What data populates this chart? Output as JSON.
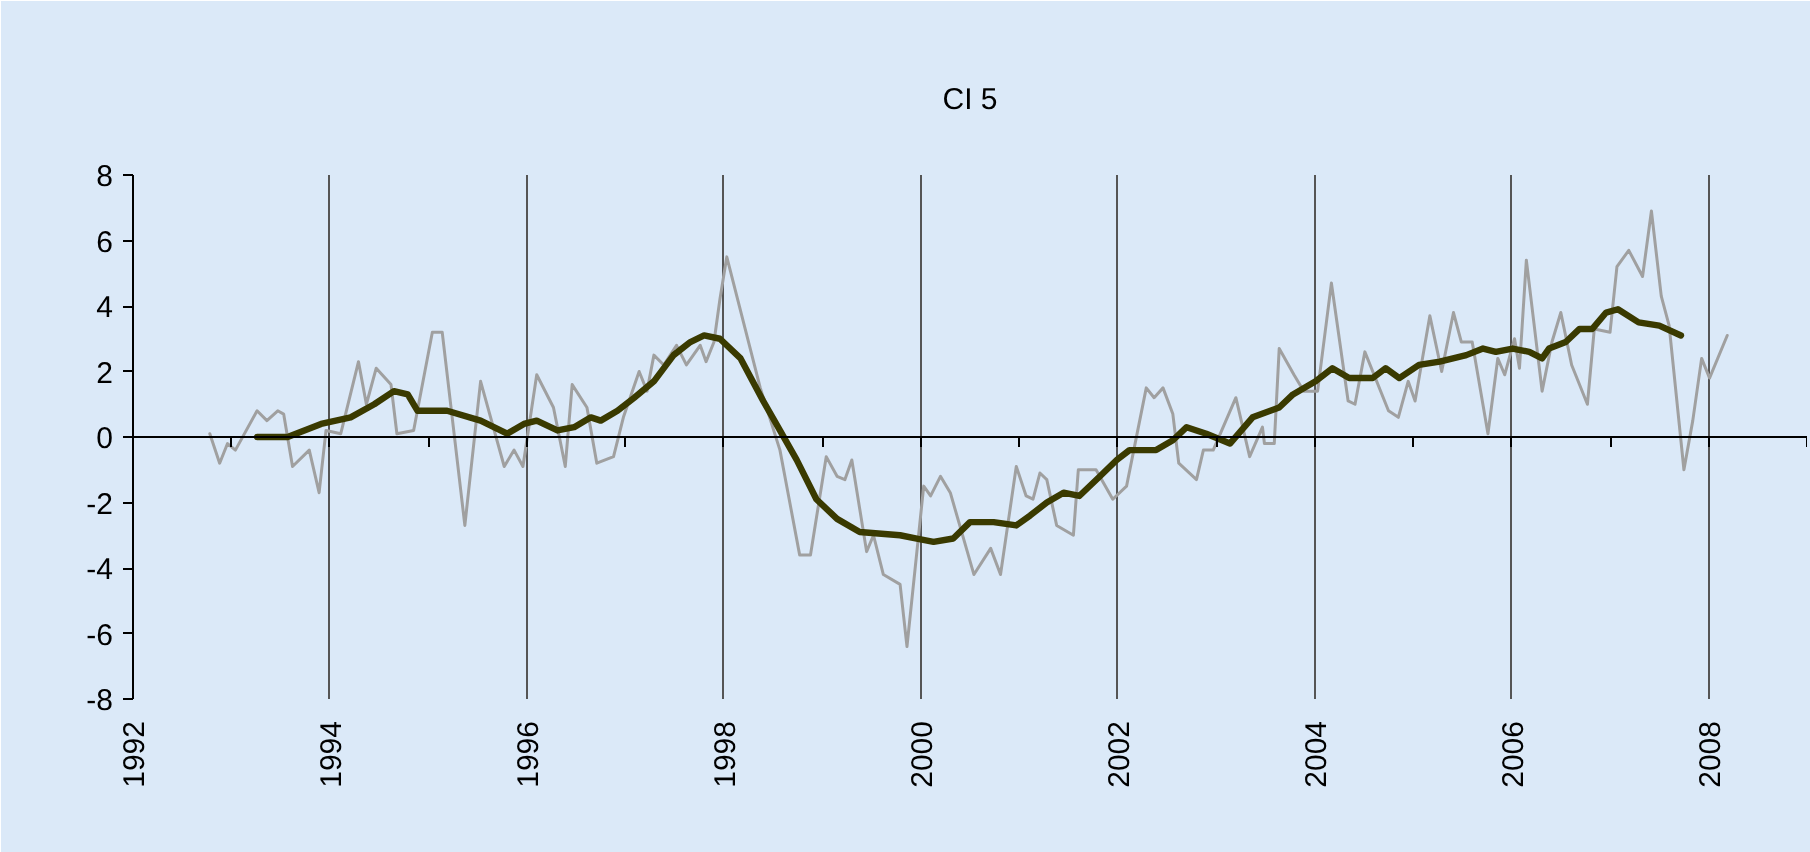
{
  "chart_data": {
    "type": "line",
    "title": "CI 5",
    "xlim": [
      1992,
      2009
    ],
    "xticks": [
      1992,
      {
        "value": 1993,
        "label": null
      },
      1994,
      {
        "value": 1995,
        "label": null
      },
      1996,
      {
        "value": 1997,
        "label": null
      },
      1998,
      {
        "value": 1999,
        "label": null
      },
      2000,
      {
        "value": 2001,
        "label": null
      },
      2002,
      {
        "value": 2003,
        "label": null
      },
      2004,
      {
        "value": 2005,
        "label": null
      },
      2006,
      {
        "value": 2007,
        "label": null
      },
      2008,
      {
        "value": 2009,
        "label": null
      }
    ],
    "ylim": [
      -8,
      8
    ],
    "yticks": [
      -8,
      -6,
      -4,
      -2,
      0,
      2,
      4,
      6,
      8
    ],
    "grid": "x",
    "marker": "none",
    "line_style": "solid",
    "series": [
      {
        "color": "#a0a0a0",
        "x": [
          1992.78,
          1992.88,
          1992.96,
          1993.04,
          1993.26,
          1993.36,
          1993.47,
          1993.53,
          1993.62,
          1993.79,
          1993.89,
          1993.96,
          1994.11,
          1994.29,
          1994.37,
          1994.47,
          1994.62,
          1994.68,
          1994.85,
          1995.04,
          1995.14,
          1995.37,
          1995.53,
          1995.77,
          1995.87,
          1995.96,
          1996.1,
          1996.27,
          1996.39,
          1996.46,
          1996.61,
          1996.71,
          1996.88,
          1996.98,
          1997.14,
          1997.22,
          1997.29,
          1997.39,
          1997.52,
          1997.62,
          1997.76,
          1997.82,
          1997.9,
          1997.96,
          1998.03,
          1998.37,
          1998.57,
          1998.77,
          1998.88,
          1999.04,
          1999.15,
          1999.23,
          1999.3,
          1999.45,
          1999.52,
          1999.62,
          1999.79,
          1999.86,
          2000.03,
          2000.1,
          2000.2,
          2000.3,
          2000.54,
          2000.71,
          2000.81,
          2000.97,
          2001.07,
          2001.14,
          2001.21,
          2001.28,
          2001.38,
          2001.55,
          2001.6,
          2001.78,
          2001.95,
          2002.09,
          2002.29,
          2002.37,
          2002.46,
          2002.56,
          2002.62,
          2002.8,
          2002.87,
          2002.97,
          2003.2,
          2003.34,
          2003.47,
          2003.49,
          2003.59,
          2003.64,
          2003.79,
          2003.89,
          2004.03,
          2004.17,
          2004.34,
          2004.41,
          2004.51,
          2004.75,
          2004.85,
          2004.95,
          2005.02,
          2005.17,
          2005.29,
          2005.41,
          2005.49,
          2005.6,
          2005.76,
          2005.86,
          2005.93,
          2006.03,
          2006.08,
          2006.15,
          2006.31,
          2006.41,
          2006.5,
          2006.61,
          2006.77,
          2006.84,
          2007.0,
          2007.07,
          2007.19,
          2007.33,
          2007.42,
          2007.52,
          2007.6,
          2007.75,
          2007.84,
          2007.93,
          2008.01,
          2008.19
        ],
        "values": [
          0.1,
          -0.8,
          -0.2,
          -0.4,
          0.8,
          0.5,
          0.8,
          0.7,
          -0.9,
          -0.4,
          -1.7,
          0.2,
          0.1,
          2.3,
          1.0,
          2.1,
          1.6,
          0.1,
          0.2,
          3.2,
          3.2,
          -2.7,
          1.7,
          -0.9,
          -0.4,
          -0.9,
          1.9,
          0.9,
          -0.9,
          1.6,
          0.9,
          -0.8,
          -0.6,
          0.6,
          2.0,
          1.4,
          2.5,
          2.2,
          2.8,
          2.2,
          2.8,
          2.3,
          2.9,
          4.2,
          5.5,
          1.5,
          -0.4,
          -3.6,
          -3.6,
          -0.6,
          -1.2,
          -1.3,
          -0.7,
          -3.5,
          -3.0,
          -4.2,
          -4.5,
          -6.4,
          -1.5,
          -1.8,
          -1.2,
          -1.7,
          -4.2,
          -3.4,
          -4.2,
          -0.9,
          -1.8,
          -1.9,
          -1.1,
          -1.3,
          -2.7,
          -3.0,
          -1.0,
          -1.0,
          -1.9,
          -1.5,
          1.5,
          1.2,
          1.5,
          0.7,
          -0.8,
          -1.3,
          -0.4,
          -0.4,
          1.2,
          -0.6,
          0.3,
          -0.2,
          -0.2,
          2.7,
          1.9,
          1.4,
          1.4,
          4.7,
          1.1,
          1.0,
          2.6,
          0.8,
          0.6,
          1.7,
          1.1,
          3.7,
          2.0,
          3.8,
          2.9,
          2.9,
          0.1,
          2.4,
          1.9,
          3.0,
          2.1,
          5.4,
          1.4,
          2.9,
          3.8,
          2.2,
          1.0,
          3.3,
          3.2,
          5.2,
          5.7,
          4.9,
          6.9,
          4.3,
          3.4,
          -1.0,
          0.5,
          2.4,
          1.8,
          3.1
        ]
      },
      {
        "color": "#3a3a00",
        "x": [
          1993.26,
          1993.57,
          1993.91,
          1994.21,
          1994.45,
          1994.65,
          1994.79,
          1994.89,
          1995.19,
          1995.53,
          1995.8,
          1995.97,
          1996.1,
          1996.31,
          1996.48,
          1996.65,
          1996.75,
          1996.92,
          1997.09,
          1997.29,
          1997.49,
          1997.66,
          1997.8,
          1997.96,
          1998.17,
          1998.4,
          1998.57,
          1998.74,
          1998.94,
          1999.15,
          1999.38,
          1999.79,
          1999.96,
          2000.13,
          2000.33,
          2000.5,
          2000.74,
          2000.97,
          2001.11,
          2001.28,
          2001.45,
          2001.61,
          2001.82,
          2001.99,
          2002.12,
          2002.39,
          2002.56,
          2002.7,
          2002.9,
          2003.14,
          2003.37,
          2003.64,
          2003.78,
          2004.01,
          2004.18,
          2004.35,
          2004.59,
          2004.72,
          2004.86,
          2005.06,
          2005.27,
          2005.54,
          2005.71,
          2005.84,
          2006.01,
          2006.18,
          2006.31,
          2006.38,
          2006.55,
          2006.69,
          2006.82,
          2006.96,
          2007.08,
          2007.29,
          2007.5,
          2007.72
        ],
        "values": [
          0.0,
          0.0,
          0.4,
          0.6,
          1.0,
          1.4,
          1.3,
          0.8,
          0.8,
          0.5,
          0.1,
          0.4,
          0.5,
          0.2,
          0.3,
          0.6,
          0.5,
          0.8,
          1.2,
          1.7,
          2.5,
          2.9,
          3.1,
          3.0,
          2.4,
          1.1,
          0.2,
          -0.7,
          -1.9,
          -2.5,
          -2.9,
          -3.0,
          -3.1,
          -3.2,
          -3.1,
          -2.6,
          -2.6,
          -2.7,
          -2.4,
          -2.0,
          -1.7,
          -1.8,
          -1.2,
          -0.7,
          -0.4,
          -0.4,
          -0.1,
          0.3,
          0.1,
          -0.2,
          0.6,
          0.9,
          1.3,
          1.7,
          2.1,
          1.8,
          1.8,
          2.1,
          1.8,
          2.2,
          2.3,
          2.5,
          2.7,
          2.6,
          2.7,
          2.6,
          2.4,
          2.7,
          2.9,
          3.3,
          3.3,
          3.8,
          3.9,
          3.5,
          3.4,
          3.1
        ]
      }
    ]
  }
}
